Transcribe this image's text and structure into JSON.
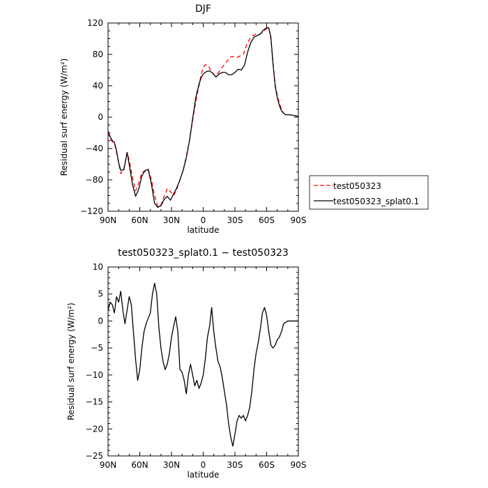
{
  "chart_data": [
    {
      "type": "line",
      "title": "DJF",
      "xlabel": "latitude",
      "ylabel": "Residual surf energy (W/m²)",
      "xlim": [
        -90,
        90
      ],
      "ylim": [
        -120,
        120
      ],
      "x_tick_values": [
        -90,
        -60,
        -30,
        0,
        30,
        60,
        90
      ],
      "x_tick_labels": [
        "90N",
        "60N",
        "30N",
        "0",
        "30S",
        "60S",
        "90S"
      ],
      "y_ticks": [
        -120,
        -80,
        -40,
        0,
        40,
        80,
        120
      ],
      "grid": false,
      "legend_position": "right",
      "series": [
        {
          "name": "test050323",
          "color": "#ff0000",
          "dash": "dashed",
          "points": [
            [
              -90,
              -20
            ],
            [
              -87,
              -30
            ],
            [
              -84,
              -33
            ],
            [
              -82,
              -45
            ],
            [
              -80,
              -58
            ],
            [
              -78,
              -72
            ],
            [
              -75,
              -66
            ],
            [
              -72,
              -45
            ],
            [
              -70,
              -55
            ],
            [
              -67,
              -76
            ],
            [
              -64,
              -94
            ],
            [
              -61,
              -84
            ],
            [
              -58,
              -70
            ],
            [
              -55,
              -69
            ],
            [
              -52,
              -66
            ],
            [
              -49,
              -80
            ],
            [
              -46,
              -100
            ],
            [
              -43,
              -114
            ],
            [
              -40,
              -112
            ],
            [
              -37,
              -101
            ],
            [
              -34,
              -91
            ],
            [
              -31,
              -95
            ],
            [
              -28,
              -100
            ],
            [
              -25,
              -92
            ],
            [
              -22,
              -80
            ],
            [
              -19,
              -68
            ],
            [
              -16,
              -50
            ],
            [
              -13,
              -30
            ],
            [
              -10,
              -4
            ],
            [
              -7,
              20
            ],
            [
              -4,
              40
            ],
            [
              -2,
              54
            ],
            [
              0,
              63
            ],
            [
              2,
              67
            ],
            [
              5,
              65
            ],
            [
              8,
              58
            ],
            [
              11,
              53
            ],
            [
              14,
              56
            ],
            [
              17,
              62
            ],
            [
              20,
              67
            ],
            [
              23,
              72
            ],
            [
              26,
              77
            ],
            [
              29,
              77
            ],
            [
              32,
              76
            ],
            [
              35,
              78
            ],
            [
              38,
              80
            ],
            [
              41,
              92
            ],
            [
              44,
              100
            ],
            [
              47,
              104
            ],
            [
              50,
              106
            ],
            [
              53,
              105
            ],
            [
              56,
              108
            ],
            [
              59,
              112
            ],
            [
              62,
              114
            ],
            [
              64,
              100
            ],
            [
              66,
              70
            ],
            [
              68,
              42
            ],
            [
              70,
              28
            ],
            [
              72,
              18
            ],
            [
              74,
              10
            ],
            [
              76,
              5
            ],
            [
              78,
              3
            ],
            [
              82,
              3
            ],
            [
              86,
              2
            ],
            [
              90,
              1
            ]
          ]
        },
        {
          "name": "test050323_splat0.1",
          "color": "#000000",
          "dash": "solid",
          "points": [
            [
              -90,
              -18
            ],
            [
              -88,
              -25
            ],
            [
              -86,
              -30
            ],
            [
              -84,
              -32
            ],
            [
              -82,
              -43
            ],
            [
              -80,
              -58
            ],
            [
              -78,
              -68
            ],
            [
              -75,
              -67
            ],
            [
              -72,
              -45
            ],
            [
              -70,
              -60
            ],
            [
              -67,
              -85
            ],
            [
              -64,
              -101
            ],
            [
              -61,
              -92
            ],
            [
              -58,
              -75
            ],
            [
              -55,
              -68
            ],
            [
              -52,
              -67
            ],
            [
              -49,
              -85
            ],
            [
              -46,
              -110
            ],
            [
              -43,
              -115
            ],
            [
              -40,
              -113
            ],
            [
              -37,
              -105
            ],
            [
              -34,
              -101
            ],
            [
              -31,
              -106
            ],
            [
              -28,
              -98
            ],
            [
              -25,
              -90
            ],
            [
              -22,
              -80
            ],
            [
              -19,
              -68
            ],
            [
              -16,
              -52
            ],
            [
              -13,
              -30
            ],
            [
              -10,
              -2
            ],
            [
              -7,
              25
            ],
            [
              -4,
              42
            ],
            [
              -2,
              50
            ],
            [
              0,
              55
            ],
            [
              3,
              58
            ],
            [
              6,
              59
            ],
            [
              9,
              56
            ],
            [
              12,
              51
            ],
            [
              15,
              55
            ],
            [
              18,
              57
            ],
            [
              21,
              57
            ],
            [
              24,
              54
            ],
            [
              27,
              54
            ],
            [
              30,
              57
            ],
            [
              33,
              61
            ],
            [
              36,
              60
            ],
            [
              39,
              66
            ],
            [
              42,
              83
            ],
            [
              45,
              95
            ],
            [
              48,
              102
            ],
            [
              51,
              104
            ],
            [
              54,
              106
            ],
            [
              57,
              111
            ],
            [
              60,
              114
            ],
            [
              62,
              114
            ],
            [
              64,
              102
            ],
            [
              66,
              68
            ],
            [
              68,
              40
            ],
            [
              70,
              25
            ],
            [
              72,
              15
            ],
            [
              74,
              8
            ],
            [
              76,
              5
            ],
            [
              78,
              3
            ],
            [
              82,
              3
            ],
            [
              86,
              2
            ],
            [
              90,
              1
            ]
          ]
        }
      ]
    },
    {
      "type": "line",
      "title": "test050323_splat0.1 − test050323",
      "xlabel": "latitude",
      "ylabel": "Residual surf energy (W/m²)",
      "xlim": [
        -90,
        90
      ],
      "ylim": [
        -25,
        10
      ],
      "x_tick_values": [
        -90,
        -60,
        -30,
        0,
        30,
        60,
        90
      ],
      "x_tick_labels": [
        "90N",
        "60N",
        "30N",
        "0",
        "30S",
        "60S",
        "90S"
      ],
      "y_ticks": [
        -25,
        -20,
        -15,
        -10,
        -5,
        0,
        5,
        10
      ],
      "grid": false,
      "series": [
        {
          "name": "",
          "color": "#000000",
          "dash": "solid",
          "points": [
            [
              -90,
              2
            ],
            [
              -88,
              3.5
            ],
            [
              -86,
              3
            ],
            [
              -84,
              1.5
            ],
            [
              -82,
              4.5
            ],
            [
              -80,
              3.5
            ],
            [
              -78,
              5.5
            ],
            [
              -76,
              2
            ],
            [
              -74,
              -0.5
            ],
            [
              -72,
              2
            ],
            [
              -70,
              4.5
            ],
            [
              -68,
              3
            ],
            [
              -66,
              -2
            ],
            [
              -64,
              -7
            ],
            [
              -62,
              -11
            ],
            [
              -60,
              -9
            ],
            [
              -58,
              -5
            ],
            [
              -56,
              -2
            ],
            [
              -54,
              -0.5
            ],
            [
              -52,
              0.5
            ],
            [
              -50,
              1.5
            ],
            [
              -48,
              5
            ],
            [
              -46,
              7
            ],
            [
              -44,
              5
            ],
            [
              -42,
              -1
            ],
            [
              -40,
              -5
            ],
            [
              -38,
              -7.5
            ],
            [
              -36,
              -9
            ],
            [
              -34,
              -8
            ],
            [
              -32,
              -6
            ],
            [
              -30,
              -3
            ],
            [
              -28,
              -1
            ],
            [
              -26,
              0.8
            ],
            [
              -24,
              -2
            ],
            [
              -22,
              -9
            ],
            [
              -20,
              -9.5
            ],
            [
              -18,
              -11
            ],
            [
              -16,
              -13.5
            ],
            [
              -14,
              -10
            ],
            [
              -12,
              -8
            ],
            [
              -10,
              -10
            ],
            [
              -8,
              -12
            ],
            [
              -6,
              -11
            ],
            [
              -4,
              -12.5
            ],
            [
              -2,
              -11.5
            ],
            [
              0,
              -10
            ],
            [
              2,
              -7
            ],
            [
              4,
              -3
            ],
            [
              6,
              -1
            ],
            [
              8,
              2.5
            ],
            [
              10,
              -2
            ],
            [
              12,
              -5
            ],
            [
              14,
              -7.5
            ],
            [
              16,
              -8.5
            ],
            [
              18,
              -10.5
            ],
            [
              20,
              -13
            ],
            [
              22,
              -15.5
            ],
            [
              24,
              -19
            ],
            [
              26,
              -21.5
            ],
            [
              28,
              -23.2
            ],
            [
              30,
              -21
            ],
            [
              32,
              -18.5
            ],
            [
              34,
              -17.5
            ],
            [
              36,
              -18
            ],
            [
              38,
              -17.5
            ],
            [
              40,
              -18.5
            ],
            [
              42,
              -17.5
            ],
            [
              44,
              -16
            ],
            [
              46,
              -13
            ],
            [
              48,
              -9
            ],
            [
              50,
              -6
            ],
            [
              52,
              -4
            ],
            [
              54,
              -1.5
            ],
            [
              56,
              1.5
            ],
            [
              58,
              2.5
            ],
            [
              60,
              1
            ],
            [
              62,
              -2
            ],
            [
              64,
              -4.5
            ],
            [
              66,
              -5
            ],
            [
              68,
              -4.5
            ],
            [
              70,
              -3.5
            ],
            [
              72,
              -3
            ],
            [
              74,
              -2
            ],
            [
              76,
              -0.5
            ],
            [
              80,
              0
            ],
            [
              86,
              0
            ],
            [
              90,
              0
            ]
          ]
        }
      ]
    }
  ]
}
